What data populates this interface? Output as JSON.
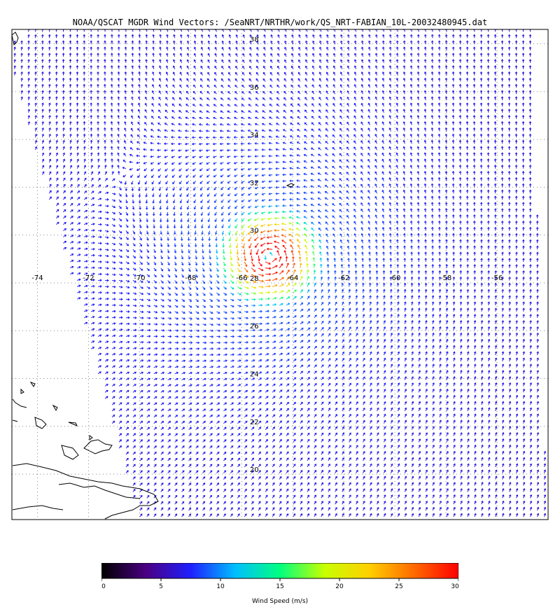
{
  "title": "NOAA/QSCAT MGDR Wind Vectors: /SeaNRT/NRTHR/work/QS_NRT-FABIAN_10L-20032480945.dat",
  "map": {
    "lon_range": [
      -75,
      -54
    ],
    "lat_range": [
      18.1,
      38.6
    ],
    "lon_labels": [
      "-74",
      "-72",
      "-70",
      "-68",
      "-66",
      "-64",
      "-62",
      "-60",
      "-58",
      "-56"
    ],
    "lat_labels": [
      "38",
      "36",
      "34",
      "32",
      "30",
      "28",
      "26",
      "24",
      "22",
      "20"
    ],
    "label_axis_lat": "28",
    "label_axis_lon": "-66",
    "storm_center": {
      "lon": -64.9,
      "lat": 29.1
    },
    "max_wind_speed": 30,
    "swath_edges": "diagonal NW to SE"
  },
  "colorbar": {
    "label": "Wind Speed (m/s)",
    "ticks": [
      "0",
      "5",
      "10",
      "15",
      "20",
      "25",
      "30"
    ],
    "min": 0,
    "max": 30,
    "colors": [
      "#000000",
      "#4b0082",
      "#1f1fff",
      "#00bfff",
      "#00ff7f",
      "#c8ff00",
      "#ffd000",
      "#ff6a00",
      "#ff0000"
    ]
  }
}
